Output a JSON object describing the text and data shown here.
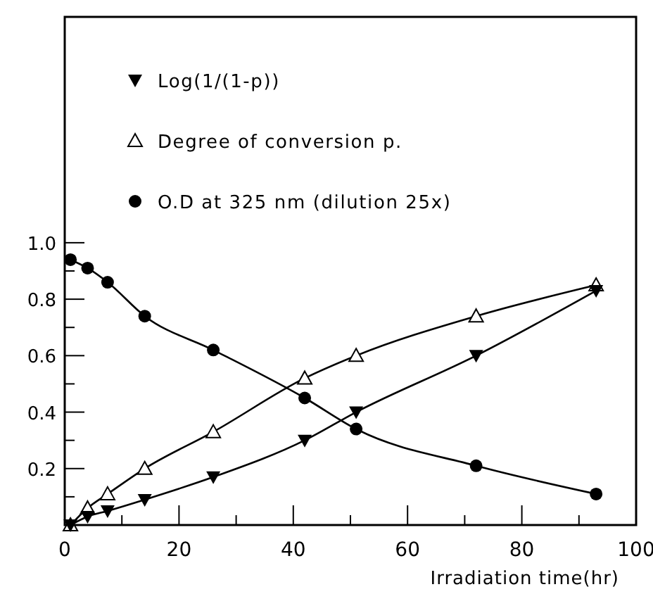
{
  "chart_data": {
    "type": "line",
    "xlabel": "Irradiation time(hr)",
    "legend": "top left",
    "line_style": "solid",
    "xlim": [
      0,
      100
    ],
    "ylim": [
      0,
      1.8
    ],
    "xticks": [
      0,
      {
        "value": 10,
        "label": null
      },
      20,
      {
        "value": 30,
        "label": null
      },
      40,
      {
        "value": 50,
        "label": null
      },
      60,
      {
        "value": 70,
        "label": null
      },
      80,
      {
        "value": 90,
        "label": null
      },
      100
    ],
    "yticks": [
      {
        "value": 0.1,
        "label": null
      },
      0.2,
      {
        "value": 0.3,
        "label": null
      },
      0.4,
      {
        "value": 0.5,
        "label": null
      },
      0.6,
      {
        "value": 0.7,
        "label": null
      },
      0.8,
      {
        "value": 0.9,
        "label": null
      },
      {
        "value": 1,
        "label": "1.0"
      }
    ],
    "series": [
      {
        "name": "Log(1/(1-p))",
        "color": "#000000",
        "marker": "triangle-down",
        "x": [
          1,
          4,
          7.5,
          14,
          26,
          42,
          51,
          72,
          93
        ],
        "values": [
          0.0,
          0.03,
          0.05,
          0.09,
          0.17,
          0.3,
          0.4,
          0.6,
          0.83
        ]
      },
      {
        "name": "Degree of conversion p.",
        "color": "#000000",
        "marker": "triangle",
        "x": [
          1,
          4,
          7.5,
          14,
          26,
          42,
          51,
          72,
          93
        ],
        "values": [
          0.0,
          0.06,
          0.11,
          0.2,
          0.33,
          0.52,
          0.6,
          0.74,
          0.85
        ]
      },
      {
        "name": "O.D  at 325 nm (dilution 25x)",
        "color": "#000000",
        "marker": "circle",
        "x": [
          1,
          4,
          7.5,
          14,
          26,
          42,
          51,
          72,
          93
        ],
        "values": [
          0.94,
          0.91,
          0.86,
          0.74,
          0.62,
          0.45,
          0.34,
          0.21,
          0.11
        ]
      }
    ]
  }
}
